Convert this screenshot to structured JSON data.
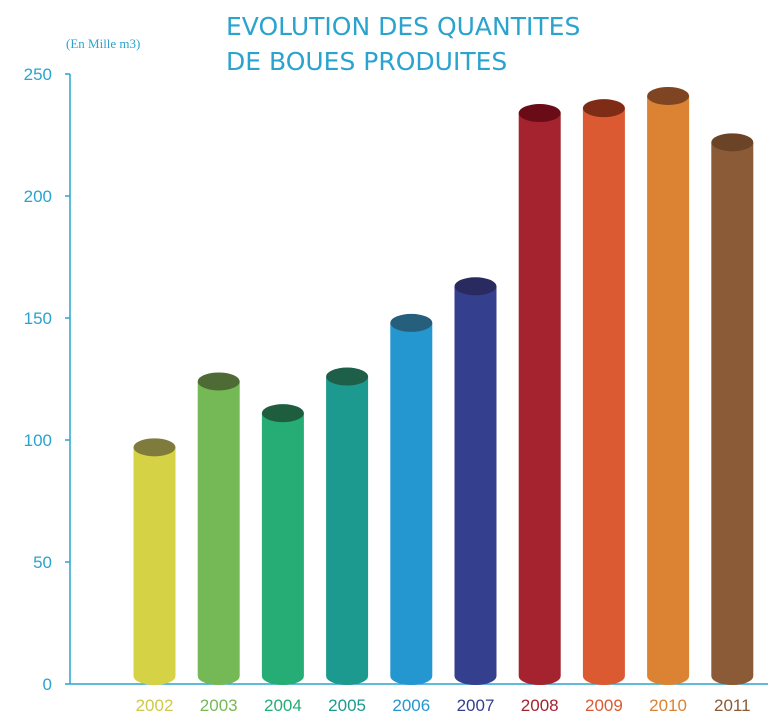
{
  "chart_data": {
    "type": "bar",
    "title_lines": [
      "EVOLUTION DES QUANTITES",
      "DE BOUES PRODUITES"
    ],
    "ylabel": "(En Mille m3)",
    "xlabel": "",
    "ylim": [
      0,
      250
    ],
    "yticks": [
      "0",
      "50",
      "100",
      "150",
      "200",
      "250"
    ],
    "categories": [
      "2002",
      "2003",
      "2004",
      "2005",
      "2006",
      "2007",
      "2008",
      "2009",
      "2010",
      "2011"
    ],
    "values": [
      97,
      124,
      111,
      126,
      148,
      163,
      234,
      236,
      241,
      222
    ],
    "colors": {
      "bars": [
        "#d5d245",
        "#75b956",
        "#25ad75",
        "#1c9a8f",
        "#2497d1",
        "#343f8d",
        "#a4232e",
        "#db5a31",
        "#db8233",
        "#8b5b37"
      ],
      "tops": [
        "#7f7b3c",
        "#4f6b35",
        "#1e5e3f",
        "#1e5f49",
        "#265f7c",
        "#282a60",
        "#690c17",
        "#7f2c17",
        "#7f4422",
        "#6b4327"
      ],
      "labels": [
        "#cfc849",
        "#75b956",
        "#25ad75",
        "#1c9a8f",
        "#2497d1",
        "#343f8d",
        "#a4232e",
        "#db5a31",
        "#db8233",
        "#8b5b37"
      ],
      "axis": "#2aa3cf",
      "title": "#2aa3cf"
    },
    "grid": false,
    "legend": "none"
  }
}
